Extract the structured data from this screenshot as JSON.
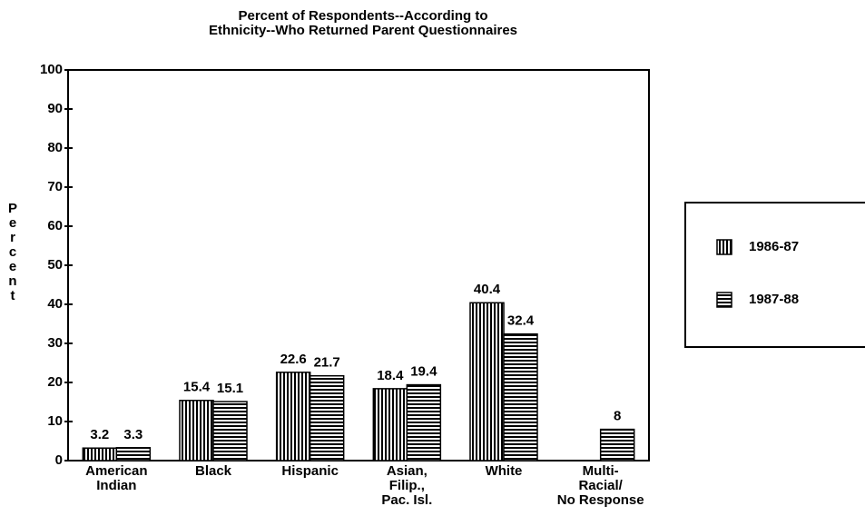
{
  "chart_data": {
    "type": "bar",
    "title": "Percent of Respondents--According to\nEthnicity--Who Returned Parent Questionnaires",
    "y_label": "Percent",
    "categories": [
      "American\nIndian",
      "Black",
      "Hispanic",
      "Asian,\nFilip.,\nPac. Isl.",
      "White",
      "Multi-\nRacial/\nNo Response"
    ],
    "series": [
      {
        "name": "1986-87",
        "color": "#000000",
        "pattern": "vertical",
        "values": [
          3.2,
          15.4,
          22.6,
          18.4,
          40.4,
          null
        ]
      },
      {
        "name": "1987-88",
        "color": "#000000",
        "pattern": "horizontal",
        "values": [
          3.3,
          15.1,
          21.7,
          19.4,
          32.4,
          8
        ]
      }
    ],
    "ylim": [
      0,
      100
    ],
    "yticks": [
      0,
      10,
      20,
      30,
      40,
      50,
      60,
      70,
      80,
      90,
      100
    ],
    "legend": "right"
  }
}
